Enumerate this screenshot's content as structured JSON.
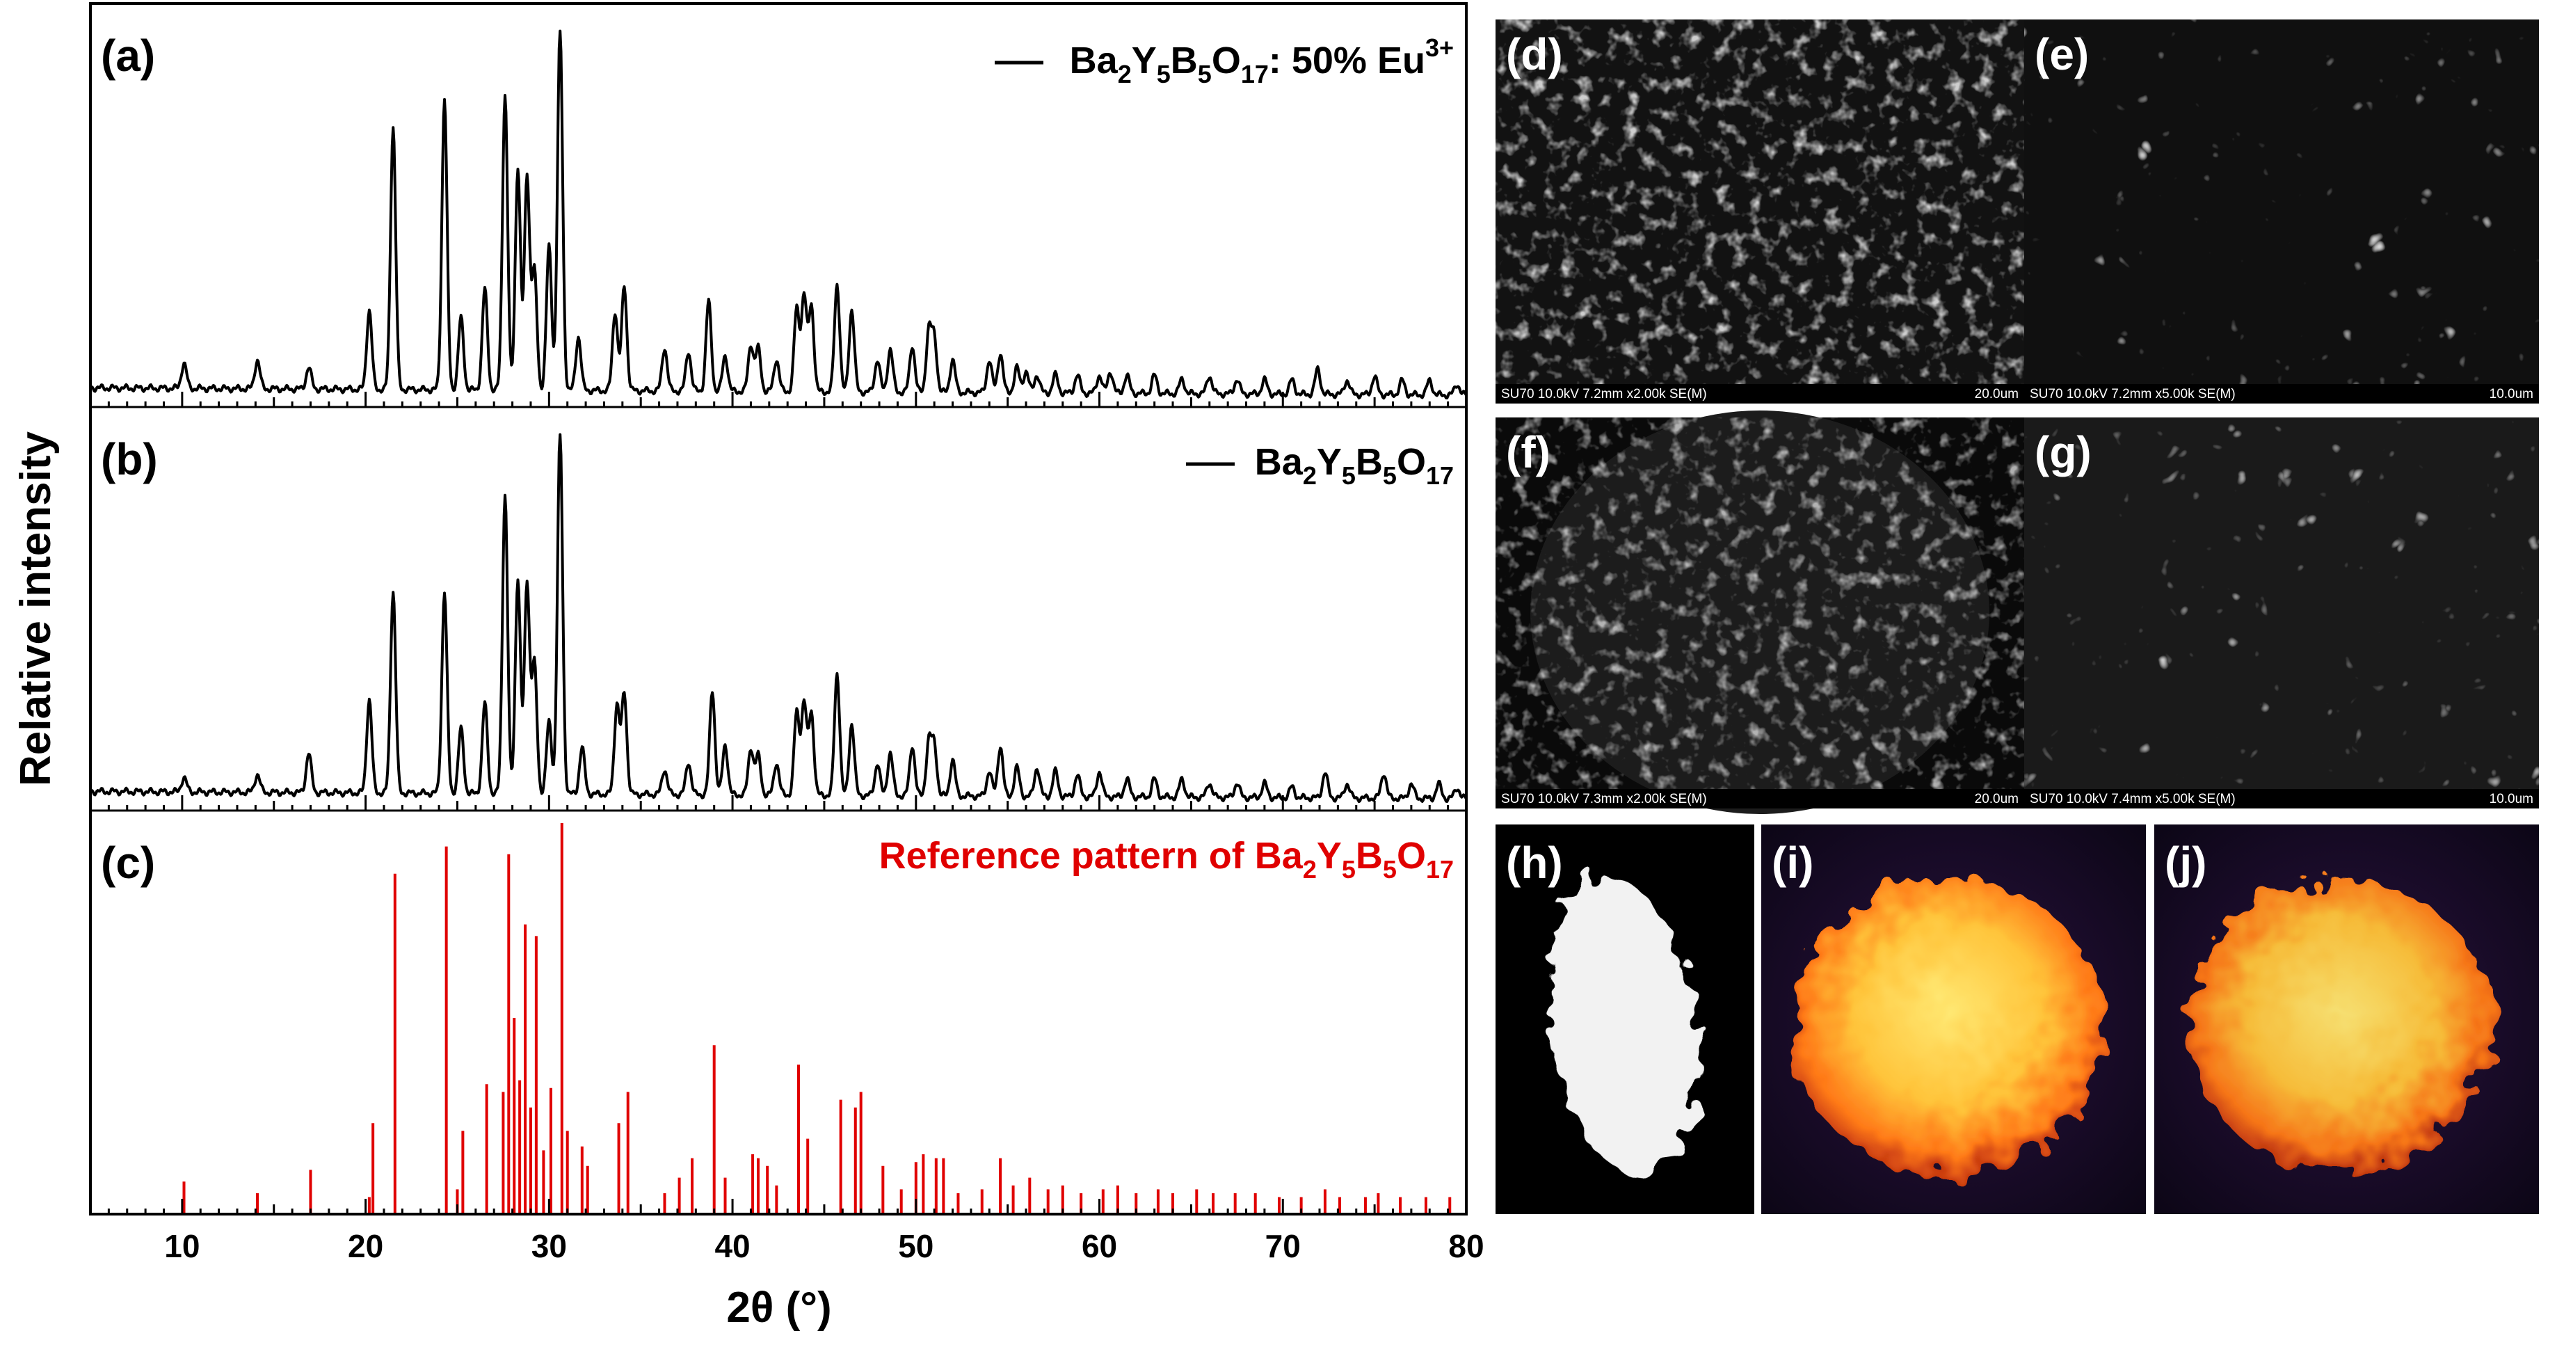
{
  "chart_data": [
    {
      "type": "line",
      "panel": "(a)",
      "legend": "Ba2Y5B5O17: 50% Eu3+",
      "series_color": "#000000",
      "x": [
        10.1,
        14.1,
        16.9,
        20.2,
        21.5,
        24.3,
        25.2,
        26.5,
        27.6,
        28.3,
        28.8,
        29.2,
        30.0,
        30.6,
        31.6,
        33.6,
        34.1,
        36.3,
        37.6,
        38.7,
        39.6,
        41.0,
        41.4,
        42.4,
        43.5,
        43.9,
        44.3,
        45.7,
        46.5,
        47.9,
        48.6,
        49.8,
        50.7,
        51.0,
        52.0,
        54.0,
        54.6,
        55.5,
        56.0,
        56.6,
        57.6,
        58.8,
        60.0,
        60.6,
        61.5,
        63.0,
        64.5,
        66.0,
        67.5,
        69.0,
        70.5,
        71.9,
        73.5,
        75.0,
        76.5,
        78.0,
        79.5
      ],
      "y": [
        0.07,
        0.08,
        0.06,
        0.22,
        0.73,
        0.81,
        0.2,
        0.28,
        0.82,
        0.62,
        0.6,
        0.33,
        0.4,
        1.0,
        0.15,
        0.22,
        0.29,
        0.12,
        0.11,
        0.25,
        0.1,
        0.13,
        0.12,
        0.09,
        0.23,
        0.27,
        0.24,
        0.3,
        0.23,
        0.09,
        0.12,
        0.13,
        0.17,
        0.15,
        0.09,
        0.09,
        0.11,
        0.07,
        0.06,
        0.05,
        0.05,
        0.05,
        0.05,
        0.06,
        0.05,
        0.05,
        0.04,
        0.05,
        0.04,
        0.04,
        0.04,
        0.07,
        0.04,
        0.05,
        0.04,
        0.04,
        0.03
      ]
    },
    {
      "type": "line",
      "panel": "(b)",
      "legend": "Ba2Y5B5O17",
      "series_color": "#000000",
      "x": [
        10.1,
        14.1,
        16.9,
        20.2,
        21.5,
        24.3,
        25.2,
        26.5,
        27.6,
        28.3,
        28.8,
        29.2,
        30.0,
        30.6,
        31.8,
        33.7,
        34.1,
        36.3,
        37.6,
        38.9,
        39.6,
        41.0,
        41.4,
        42.4,
        43.5,
        43.9,
        44.3,
        45.7,
        46.5,
        47.9,
        48.6,
        49.8,
        50.7,
        51.0,
        52.0,
        54.0,
        54.6,
        55.5,
        56.6,
        57.6,
        58.8,
        60.0,
        61.5,
        63.0,
        64.5,
        66.0,
        67.5,
        69.0,
        70.5,
        72.3,
        73.5,
        75.5,
        77.0,
        78.5,
        79.5
      ],
      "y": [
        0.04,
        0.05,
        0.11,
        0.26,
        0.56,
        0.56,
        0.18,
        0.25,
        0.83,
        0.6,
        0.59,
        0.36,
        0.2,
        1.0,
        0.13,
        0.25,
        0.28,
        0.07,
        0.09,
        0.29,
        0.14,
        0.13,
        0.11,
        0.09,
        0.23,
        0.26,
        0.23,
        0.34,
        0.2,
        0.09,
        0.12,
        0.14,
        0.15,
        0.14,
        0.1,
        0.07,
        0.14,
        0.08,
        0.08,
        0.07,
        0.06,
        0.07,
        0.05,
        0.05,
        0.05,
        0.04,
        0.04,
        0.04,
        0.03,
        0.07,
        0.04,
        0.07,
        0.04,
        0.04,
        0.03
      ]
    },
    {
      "type": "bar",
      "panel": "(c)",
      "legend": "Reference pattern of Ba2Y5B5O17",
      "series_color": "#e00000",
      "x": [
        10.1,
        14.1,
        17.0,
        20.2,
        20.4,
        21.6,
        24.4,
        25.0,
        25.3,
        26.6,
        27.5,
        27.8,
        28.1,
        28.4,
        28.7,
        29.0,
        29.3,
        29.7,
        30.1,
        30.7,
        31.0,
        31.8,
        32.1,
        33.8,
        34.3,
        36.3,
        37.1,
        37.8,
        39.0,
        39.6,
        41.1,
        41.4,
        41.9,
        42.4,
        43.6,
        44.1,
        45.9,
        46.7,
        47.0,
        48.2,
        49.2,
        50.0,
        50.4,
        51.1,
        51.5,
        52.3,
        53.6,
        54.6,
        55.3,
        56.2,
        57.2,
        58.0,
        59.0,
        60.2,
        61.0,
        62.0,
        63.2,
        64.0,
        65.3,
        66.2,
        67.4,
        68.5,
        69.8,
        71.0,
        72.3,
        73.1,
        74.5,
        75.2,
        76.4,
        77.8,
        79.1
      ],
      "y": [
        0.08,
        0.05,
        0.11,
        0.04,
        0.23,
        0.87,
        0.94,
        0.06,
        0.21,
        0.33,
        0.31,
        0.92,
        0.5,
        0.34,
        0.74,
        0.27,
        0.71,
        0.16,
        0.32,
        1.0,
        0.21,
        0.17,
        0.12,
        0.23,
        0.31,
        0.05,
        0.09,
        0.14,
        0.43,
        0.09,
        0.15,
        0.14,
        0.12,
        0.07,
        0.38,
        0.19,
        0.29,
        0.27,
        0.31,
        0.12,
        0.06,
        0.13,
        0.15,
        0.14,
        0.14,
        0.05,
        0.06,
        0.14,
        0.07,
        0.09,
        0.06,
        0.07,
        0.05,
        0.06,
        0.07,
        0.05,
        0.06,
        0.05,
        0.06,
        0.05,
        0.05,
        0.05,
        0.04,
        0.04,
        0.06,
        0.04,
        0.04,
        0.05,
        0.04,
        0.04,
        0.04
      ]
    }
  ],
  "axes": {
    "xlabel": "2θ (°)",
    "ylabel": "Relative intensity",
    "xlim": [
      5,
      80
    ],
    "xticks": [
      "10",
      "20",
      "30",
      "40",
      "50",
      "60",
      "70",
      "80"
    ]
  },
  "labels": {
    "a": "(a)",
    "b": "(b)",
    "c": "(c)",
    "d": "(d)",
    "e": "(e)",
    "f": "(f)",
    "g": "(g)",
    "h": "(h)",
    "i": "(i)",
    "j": "(j)"
  },
  "legend_a": {
    "ba": "Ba",
    "two": "2",
    "y": "Y",
    "five1": "5",
    "b": "B",
    "five2": "5",
    "o": "O",
    "seventeen": "17",
    "rest": ": 50% Eu",
    "charge": "3+"
  },
  "legend_b": {
    "ba": "Ba",
    "two": "2",
    "y": "Y",
    "five1": "5",
    "b": "B",
    "five2": "5",
    "o": "O",
    "seventeen": "17"
  },
  "legend_c": {
    "prefix": "Reference pattern of Ba",
    "two": "2",
    "y": "Y",
    "five1": "5",
    "b": "B",
    "five2": "5",
    "o": "O",
    "seventeen": "17"
  },
  "sem": {
    "d": {
      "info": "SU70 10.0kV 7.2mm x2.00k SE(M)",
      "scale": "20.0um"
    },
    "e": {
      "info": "SU70 10.0kV 7.2mm x5.00k SE(M)",
      "scale": "10.0um"
    },
    "f": {
      "info": "SU70 10.0kV 7.3mm x2.00k SE(M)",
      "scale": "20.0um"
    },
    "g": {
      "info": "SU70 10.0kV 7.4mm x5.00k SE(M)",
      "scale": "10.0um"
    }
  }
}
